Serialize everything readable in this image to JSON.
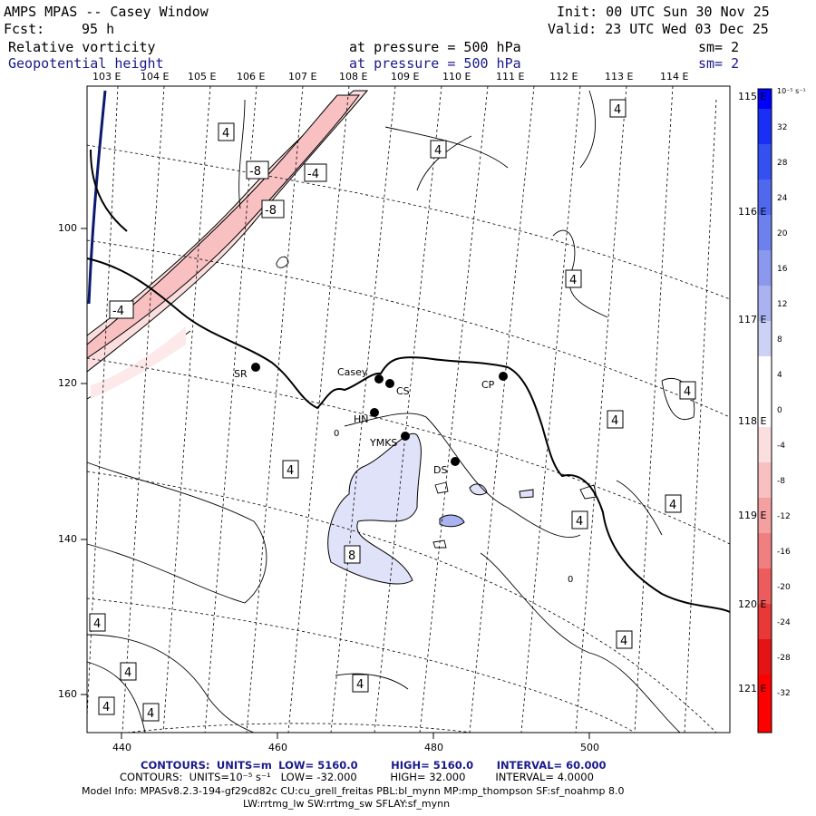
{
  "header": {
    "title": "AMPS MPAS -- Casey Window",
    "init": "Init: 00 UTC Sun 30 Nov 25",
    "fcst_label": "Fcst:",
    "fcst_value": "95 h",
    "valid": "Valid: 23 UTC Wed 03 Dec 25",
    "field1": {
      "name": "Relative vorticity",
      "pressure": "at pressure =  500 hPa",
      "sm": "sm= 2"
    },
    "field2": {
      "name": "Geopotential height",
      "pressure": "at pressure =  500 hPa",
      "sm": "sm= 2"
    }
  },
  "lon_top_labels": [
    "103 E",
    "104 E",
    "105 E",
    "106 E",
    "107 E",
    "108 E",
    "109 E",
    "110 E",
    "111 E",
    "112 E",
    "113 E",
    "114 E"
  ],
  "lon_right_labels": [
    "115 E",
    "116 E",
    "117 E",
    "118 E",
    "119 E",
    "120 E",
    "121 E"
  ],
  "x_ticks": [
    "440",
    "460",
    "480",
    "500"
  ],
  "y_ticks": [
    "100",
    "120",
    "140",
    "160"
  ],
  "colorbar": {
    "unit": "10⁻⁵ s⁻¹",
    "labels": [
      "32",
      "28",
      "24",
      "20",
      "16",
      "12",
      "8",
      "4",
      "0",
      "-4",
      "-8",
      "-12",
      "-16",
      "-20",
      "-24",
      "-28",
      "-32"
    ],
    "colors": [
      "#0000ff",
      "#1a2ff5",
      "#3450f0",
      "#5068ee",
      "#6c80ee",
      "#8a98ee",
      "#aab2f0",
      "#ccd2f5",
      "#ffffff",
      "#ffffff",
      "#fbdede",
      "#f8c0c0",
      "#f4a0a0",
      "#f08080",
      "#ec5c5c",
      "#e83838",
      "#e41414",
      "#ff0000"
    ]
  },
  "stations": [
    {
      "id": "SR",
      "label": "SR"
    },
    {
      "id": "Casey",
      "label": "Casey"
    },
    {
      "id": "CS",
      "label": "CS"
    },
    {
      "id": "HN",
      "label": "HN"
    },
    {
      "id": "YMKS",
      "label": "YMKS"
    },
    {
      "id": "DS",
      "label": "DS"
    },
    {
      "id": "CP",
      "label": "CP"
    }
  ],
  "contour_labels": [
    "4",
    "4",
    "4",
    "-8",
    "-4",
    "-8",
    "4",
    "-4",
    "4",
    "4",
    "4",
    "8",
    "4",
    "4",
    "4",
    "4",
    "4",
    "4",
    "4",
    "4",
    "0",
    "0"
  ],
  "footer": {
    "line1_key": "CONTOURS:",
    "line1_units": "UNITS=m",
    "line1_low": "LOW=  5160.0",
    "line1_high": "HIGH=  5160.0",
    "line1_interval": "INTERVAL=   60.000",
    "line2_key": "CONTOURS:",
    "line2_units": "UNITS=10⁻⁵ s⁻¹",
    "line2_low": "LOW= -32.000",
    "line2_high": "HIGH=  32.000",
    "line2_interval": "INTERVAL=   4.0000",
    "model_info": "Model Info: MPASv8.2.3-194-gf29cd82c CU:cu_grell_freitas PBL:bl_mynn MP:mp_thompson SF:sf_noahmp 8.0",
    "model_info2": "LW:rrtmg_lw SW:rrtmg_sw SFLAY:sf_mynn"
  }
}
